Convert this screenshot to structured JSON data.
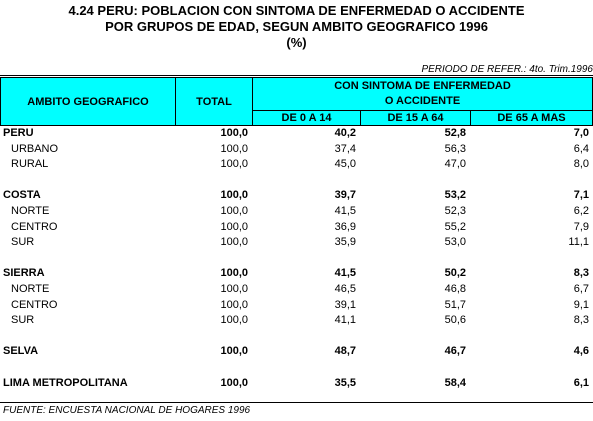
{
  "header": {
    "title_lines": [
      "4.24  PERU:  POBLACION CON SINTOMA DE ENFERMEDAD O ACCIDENTE",
      "POR GRUPOS DE EDAD, SEGUN AMBITO GEOGRAFICO 1996",
      "(%)"
    ],
    "period": "PERIODO DE REFER.: 4to. Trim.1996"
  },
  "table": {
    "columns": {
      "ambito": "AMBITO GEOGRAFICO",
      "total": "TOTAL",
      "group_lines": [
        "CON SINTOMA DE ENFERMEDAD",
        "O ACCIDENTE"
      ],
      "ages": [
        "DE 0 A 14",
        "DE 15 A 64",
        "DE 65 A MAS"
      ]
    },
    "groups": [
      {
        "rows": [
          {
            "label": "PERU",
            "bold": true,
            "values": [
              "100,0",
              "40,2",
              "52,8",
              "7,0"
            ]
          },
          {
            "label": "URBANO",
            "bold": false,
            "values": [
              "100,0",
              "37,4",
              "56,3",
              "6,4"
            ]
          },
          {
            "label": "RURAL",
            "bold": false,
            "values": [
              "100,0",
              "45,0",
              "47,0",
              "8,0"
            ]
          }
        ]
      },
      {
        "rows": [
          {
            "label": "COSTA",
            "bold": true,
            "values": [
              "100,0",
              "39,7",
              "53,2",
              "7,1"
            ]
          },
          {
            "label": "NORTE",
            "bold": false,
            "values": [
              "100,0",
              "41,5",
              "52,3",
              "6,2"
            ]
          },
          {
            "label": "CENTRO",
            "bold": false,
            "values": [
              "100,0",
              "36,9",
              "55,2",
              "7,9"
            ]
          },
          {
            "label": "SUR",
            "bold": false,
            "values": [
              "100,0",
              "35,9",
              "53,0",
              "11,1"
            ]
          }
        ]
      },
      {
        "rows": [
          {
            "label": "SIERRA",
            "bold": true,
            "values": [
              "100,0",
              "41,5",
              "50,2",
              "8,3"
            ]
          },
          {
            "label": "NORTE",
            "bold": false,
            "values": [
              "100,0",
              "46,5",
              "46,8",
              "6,7"
            ]
          },
          {
            "label": "CENTRO",
            "bold": false,
            "values": [
              "100,0",
              "39,1",
              "51,7",
              "9,1"
            ]
          },
          {
            "label": "SUR",
            "bold": false,
            "values": [
              "100,0",
              "41,1",
              "50,6",
              "8,3"
            ]
          }
        ]
      },
      {
        "rows": [
          {
            "label": "SELVA",
            "bold": true,
            "values": [
              "100,0",
              "48,7",
              "46,7",
              "4,6"
            ]
          }
        ]
      },
      {
        "rows": [
          {
            "label": "LIMA METROPOLITANA",
            "bold": true,
            "values": [
              "100,0",
              "35,5",
              "58,4",
              "6,1"
            ]
          }
        ]
      }
    ]
  },
  "footer": {
    "source": "FUENTE: ENCUESTA NACIONAL DE HOGARES 1996"
  }
}
